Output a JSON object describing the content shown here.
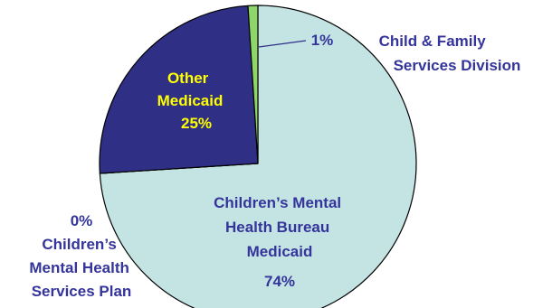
{
  "chart_data": {
    "type": "pie",
    "start_angle_deg": 0,
    "direction": "clockwise",
    "slices": [
      {
        "label": "Children's Mental Health Bureau Medicaid",
        "label_lines": [
          "Children’s Mental",
          "Health Bureau",
          "Medicaid"
        ],
        "percent_label": "74%",
        "value": 74,
        "color": "#c4e4e4",
        "label_color": "#34349a"
      },
      {
        "label": "Children's Mental Health Services Plan",
        "label_lines": [
          "Children’s",
          "Mental Health",
          "Services Plan"
        ],
        "percent_label": "0%",
        "value": 0,
        "color": "#c4e4e4",
        "label_color": "#34349a"
      },
      {
        "label": "Other Medicaid",
        "label_lines": [
          "Other",
          "Medicaid"
        ],
        "percent_label": "25%",
        "value": 25,
        "color": "#2f2f86",
        "label_color": "#ffff00"
      },
      {
        "label": "Child & Family Services Division",
        "label_lines": [
          "Child & Family",
          "Services Division"
        ],
        "percent_label": "1%",
        "value": 1,
        "color": "#8ed66a",
        "label_color": "#34349a"
      }
    ]
  }
}
